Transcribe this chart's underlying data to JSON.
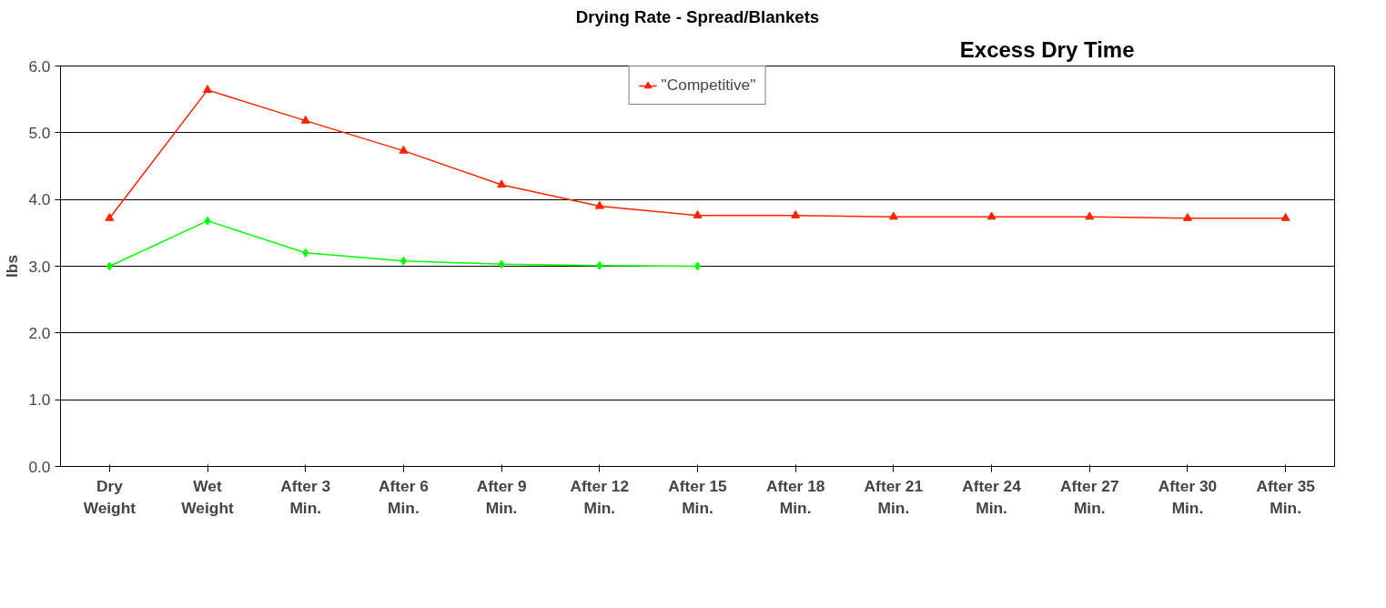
{
  "chart_data": {
    "type": "line",
    "title": "Drying Rate - Spread/Blankets",
    "ylabel": "lbs",
    "categories": [
      "Dry\nWeight",
      "Wet\nWeight",
      "After 3\nMin.",
      "After 6\nMin.",
      "After 9\nMin.",
      "After 12\nMin.",
      "After 15\nMin.",
      "After 18\nMin.",
      "After 21\nMin.",
      "After 24\nMin.",
      "After 27\nMin.",
      "After 30\nMin.",
      "After 35\nMin."
    ],
    "series": [
      {
        "color": "#00ff00",
        "marker": "diamond",
        "values": [
          3.0,
          3.68,
          3.2,
          3.08,
          3.03,
          3.01,
          3.0,
          null,
          null,
          null,
          null,
          null,
          null
        ]
      },
      {
        "name": "\"Competitive\"",
        "color": "#ff2200",
        "marker": "triangle",
        "values": [
          3.72,
          5.64,
          5.18,
          4.73,
          4.22,
          3.9,
          3.76,
          3.76,
          3.74,
          3.74,
          3.74,
          3.72,
          3.72
        ]
      }
    ],
    "ylim": [
      0,
      6
    ],
    "yticks": [
      {
        "value": 0,
        "label": "0.0"
      },
      {
        "value": 1,
        "label": "1.0"
      },
      {
        "value": 2,
        "label": "2.0"
      },
      {
        "value": 3,
        "label": "3.0"
      },
      {
        "value": 4,
        "label": "4.0"
      },
      {
        "value": 5,
        "label": "5.0"
      },
      {
        "value": 6,
        "label": "6.0"
      }
    ],
    "grid": "y",
    "legend": "top",
    "line_style": "solid",
    "annotations": [
      "Excess Dry Time"
    ]
  }
}
